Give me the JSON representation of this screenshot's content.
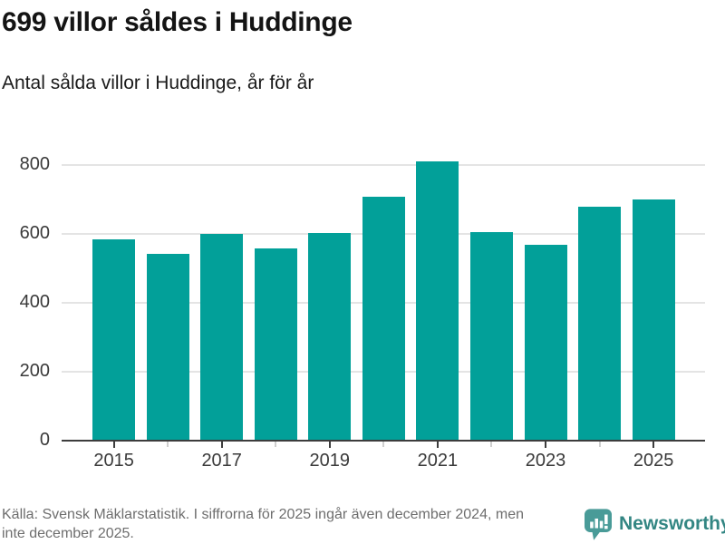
{
  "header": {
    "title": "699 villor såldes i Huddinge",
    "subtitle": "Antal sålda villor i Huddinge, år för år"
  },
  "chart_data": {
    "type": "bar",
    "title": "699 villor såldes i Huddinge",
    "subtitle": "Antal sålda villor i Huddinge, år för år",
    "categories": [
      "2015",
      "2016",
      "2017",
      "2018",
      "2019",
      "2020",
      "2021",
      "2022",
      "2023",
      "2024",
      "2025"
    ],
    "values": [
      585,
      543,
      600,
      559,
      603,
      709,
      810,
      605,
      568,
      679,
      699
    ],
    "xlabel": "",
    "ylabel": "",
    "ylim": [
      0,
      800
    ],
    "yticks": [
      0,
      200,
      400,
      600,
      800
    ],
    "xticks": [
      "2015",
      "2017",
      "2019",
      "2021",
      "2023",
      "2025"
    ],
    "grid": "horizontal",
    "legend": "none",
    "bar_color": "#02a099"
  },
  "footer": {
    "source": "Källa: Svensk Mäklarstatistik. I siffrorna för 2025 ingår även december 2024, men inte december 2025.",
    "brand": "Newsworthy"
  },
  "colors": {
    "accent": "#02a099",
    "gridline": "#e4e4e4",
    "axis": "#3d3d3d",
    "text_primary": "#141414",
    "text_muted": "#6e6e6e",
    "logo_bubble": "#499b98",
    "logo_text": "#338683"
  }
}
